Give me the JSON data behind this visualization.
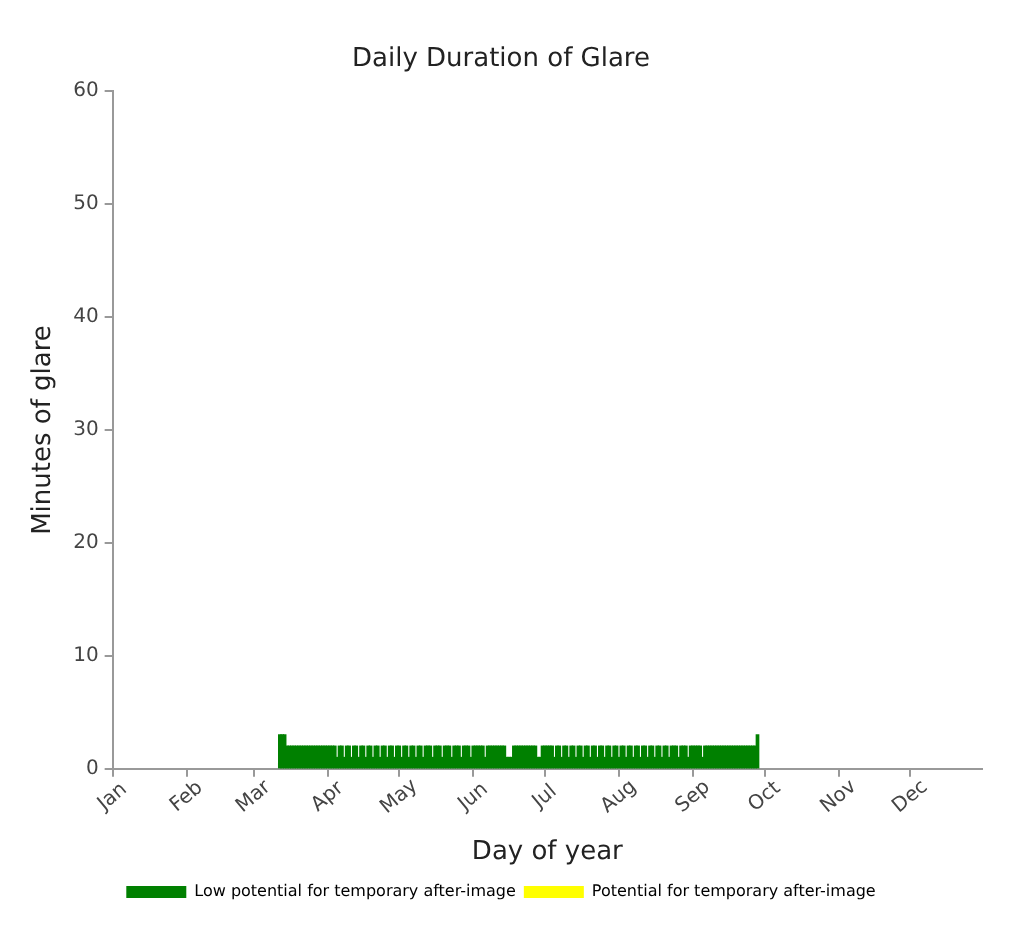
{
  "chart_data": {
    "type": "bar",
    "title": "Daily Duration of Glare",
    "xlabel": "Day of year",
    "ylabel": "Minutes of glare",
    "x": [
      "--03-12",
      "--03-13",
      "--03-14",
      "--03-15",
      "--03-16",
      "--03-17",
      "--03-18",
      "--03-19",
      "--03-20",
      "--03-21",
      "--03-22",
      "--03-23",
      "--03-24",
      "--03-25",
      "--03-26",
      "--03-27",
      "--03-28",
      "--03-29",
      "--03-30",
      "--03-31",
      "--04-01",
      "--04-02",
      "--04-03",
      "--04-04",
      "--04-05",
      "--04-06",
      "--04-07",
      "--04-08",
      "--04-09",
      "--04-10",
      "--04-11",
      "--04-12",
      "--04-13",
      "--04-14",
      "--04-15",
      "--04-16",
      "--04-17",
      "--04-18",
      "--04-19",
      "--04-20",
      "--04-21",
      "--04-22",
      "--04-23",
      "--04-24",
      "--04-25",
      "--04-26",
      "--04-27",
      "--04-28",
      "--04-29",
      "--04-30",
      "--05-01",
      "--05-02",
      "--05-03",
      "--05-04",
      "--05-05",
      "--05-06",
      "--05-07",
      "--05-08",
      "--05-09",
      "--05-10",
      "--05-11",
      "--05-12",
      "--05-13",
      "--05-14",
      "--05-15",
      "--05-16",
      "--05-17",
      "--05-18",
      "--05-19",
      "--05-20",
      "--05-21",
      "--05-22",
      "--05-23",
      "--05-24",
      "--05-25",
      "--05-26",
      "--05-27",
      "--05-28",
      "--05-29",
      "--05-30",
      "--05-31",
      "--06-01",
      "--06-02",
      "--06-03",
      "--06-04",
      "--06-05",
      "--06-06",
      "--06-07",
      "--06-08",
      "--06-09",
      "--06-10",
      "--06-11",
      "--06-12",
      "--06-13",
      "--06-14",
      "--06-15",
      "--06-16",
      "--06-17",
      "--06-18",
      "--06-19",
      "--06-20",
      "--06-21",
      "--06-22",
      "--06-23",
      "--06-24",
      "--06-25",
      "--06-26",
      "--06-27",
      "--06-28",
      "--06-29",
      "--06-30",
      "--07-01",
      "--07-02",
      "--07-03",
      "--07-04",
      "--07-05",
      "--07-06",
      "--07-07",
      "--07-08",
      "--07-09",
      "--07-10",
      "--07-11",
      "--07-12",
      "--07-13",
      "--07-14",
      "--07-15",
      "--07-16",
      "--07-17",
      "--07-18",
      "--07-19",
      "--07-20",
      "--07-21",
      "--07-22",
      "--07-23",
      "--07-24",
      "--07-25",
      "--07-26",
      "--07-27",
      "--07-28",
      "--07-29",
      "--07-30",
      "--07-31",
      "--08-01",
      "--08-02",
      "--08-03",
      "--08-04",
      "--08-05",
      "--08-06",
      "--08-07",
      "--08-08",
      "--08-09",
      "--08-10",
      "--08-11",
      "--08-12",
      "--08-13",
      "--08-14",
      "--08-15",
      "--08-16",
      "--08-17",
      "--08-18",
      "--08-19",
      "--08-20",
      "--08-21",
      "--08-22",
      "--08-23",
      "--08-24",
      "--08-25",
      "--08-26",
      "--08-27",
      "--08-28",
      "--08-29",
      "--08-30",
      "--08-31",
      "--09-01",
      "--09-02",
      "--09-03",
      "--09-04",
      "--09-05",
      "--09-06",
      "--09-07",
      "--09-08",
      "--09-09",
      "--09-10",
      "--09-11",
      "--09-12",
      "--09-13",
      "--09-14",
      "--09-15",
      "--09-16",
      "--09-17",
      "--09-18",
      "--09-19",
      "--09-20",
      "--09-21",
      "--09-22",
      "--09-23",
      "--09-24",
      "--09-25",
      "--09-26",
      "--09-27",
      "--09-28"
    ],
    "series": [
      {
        "name": "Low potential for temporary after-image",
        "color": "#008000",
        "values": [
          3,
          3,
          3,
          2,
          2,
          2,
          2,
          2,
          2,
          2,
          2,
          2,
          2,
          2,
          2,
          2,
          2,
          2,
          2,
          2,
          2,
          2,
          2,
          2,
          1,
          2,
          2,
          1,
          2,
          2,
          1,
          2,
          2,
          1,
          2,
          2,
          1,
          2,
          2,
          1,
          2,
          2,
          1,
          2,
          2,
          1,
          2,
          2,
          1,
          2,
          2,
          1,
          2,
          2,
          1,
          2,
          2,
          1,
          2,
          2,
          1,
          2,
          2,
          2,
          1,
          2,
          2,
          2,
          1,
          2,
          2,
          2,
          1,
          2,
          2,
          2,
          1,
          2,
          2,
          2,
          1,
          2,
          2,
          2,
          2,
          2,
          1,
          2,
          2,
          2,
          2,
          2,
          2,
          2,
          2,
          1,
          1,
          1,
          2,
          2,
          2,
          2,
          2,
          2,
          2,
          2,
          2,
          2,
          1,
          1,
          2,
          2,
          2,
          2,
          2,
          1,
          2,
          2,
          1,
          2,
          2,
          1,
          2,
          2,
          1,
          2,
          2,
          1,
          2,
          2,
          1,
          2,
          2,
          1,
          2,
          2,
          1,
          2,
          2,
          1,
          2,
          2,
          1,
          2,
          2,
          1,
          2,
          2,
          1,
          2,
          2,
          1,
          2,
          2,
          1,
          2,
          2,
          1,
          2,
          2,
          1,
          2,
          2,
          1,
          2,
          2,
          2,
          1,
          2,
          2,
          2,
          1,
          2,
          2,
          2,
          2,
          2,
          1,
          2,
          2,
          2,
          2,
          2,
          2,
          2,
          2,
          2,
          2,
          2,
          2,
          2,
          2,
          2,
          2,
          2,
          2,
          2,
          2,
          2,
          2,
          3
        ]
      },
      {
        "name": "Potential for temporary after-image",
        "color": "#ffff00",
        "values": [
          null,
          null,
          null,
          null,
          null,
          null,
          null,
          null,
          null,
          null,
          null,
          null,
          null,
          null,
          null,
          null,
          null,
          null,
          null,
          null,
          null,
          null,
          null,
          null,
          null,
          null,
          null,
          null,
          null,
          null,
          null,
          null,
          null,
          null,
          null,
          null,
          null,
          null,
          null,
          null,
          null,
          null,
          null,
          null,
          null,
          null,
          null,
          null,
          null,
          null,
          null,
          null,
          null,
          null,
          null,
          null,
          null,
          null,
          null,
          null,
          null,
          null,
          null,
          null,
          null,
          null,
          null,
          null,
          null,
          null,
          null,
          null,
          null,
          null,
          null,
          null,
          null,
          null,
          null,
          null,
          null,
          null,
          null,
          null,
          null,
          null,
          null,
          null,
          null,
          null,
          null,
          null,
          null,
          null,
          null,
          null,
          null,
          null,
          null,
          null,
          null,
          null,
          null,
          null,
          null,
          null,
          null,
          null,
          null,
          null,
          null,
          null,
          null,
          null,
          null,
          null,
          null,
          null,
          null,
          null,
          null,
          null,
          null,
          null,
          null,
          null,
          null,
          null,
          null,
          null,
          null,
          null,
          null,
          null,
          null,
          null,
          null,
          null,
          null,
          null,
          null,
          null,
          null,
          null,
          null,
          null,
          null,
          null,
          null,
          null,
          null,
          null,
          null,
          null,
          null,
          null,
          null,
          null,
          null,
          null,
          null,
          null,
          null,
          null,
          null,
          null,
          null,
          null,
          null,
          null,
          null,
          null,
          null,
          null,
          null,
          null,
          null,
          null,
          null,
          null,
          null,
          null,
          null,
          null,
          null,
          null,
          null,
          null,
          null,
          null,
          null,
          null,
          null,
          null,
          null,
          null,
          null,
          null,
          null,
          null,
          null
        ]
      }
    ],
    "xlim": [
      "--01-01",
      "--12-31"
    ],
    "xticks": [
      {
        "value": "--01-01",
        "label": "Jan"
      },
      {
        "value": "--02-01",
        "label": "Feb"
      },
      {
        "value": "--03-01",
        "label": "Mar"
      },
      {
        "value": "--04-01",
        "label": "Apr"
      },
      {
        "value": "--05-01",
        "label": "May"
      },
      {
        "value": "--06-01",
        "label": "Jun"
      },
      {
        "value": "--07-01",
        "label": "Jul"
      },
      {
        "value": "--08-01",
        "label": "Aug"
      },
      {
        "value": "--09-01",
        "label": "Sep"
      },
      {
        "value": "--10-01",
        "label": "Oct"
      },
      {
        "value": "--11-01",
        "label": "Nov"
      },
      {
        "value": "--12-01",
        "label": "Dec"
      }
    ],
    "ylim": [
      0,
      60
    ],
    "yticks": [
      0,
      10,
      20,
      30,
      40,
      50,
      60
    ],
    "grid": false,
    "legend": "bottom"
  }
}
